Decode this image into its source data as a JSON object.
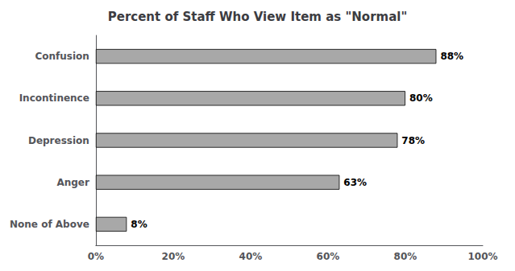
{
  "chart_data": {
    "type": "bar",
    "orientation": "horizontal",
    "title": "Percent of Staff Who View Item as \"Normal\"",
    "categories": [
      "None of Above",
      "Anger",
      "Depression",
      "Incontinence",
      "Confusion"
    ],
    "values": [
      8,
      63,
      78,
      80,
      88
    ],
    "value_labels": [
      "8%",
      "63%",
      "78%",
      "80%",
      "88%"
    ],
    "data_labels": true,
    "color": "#a8a8a8",
    "xlim": [
      0,
      100
    ],
    "xticks": [
      {
        "value": 0,
        "label": "0%"
      },
      {
        "value": 20,
        "label": "20%"
      },
      {
        "value": 40,
        "label": "40%"
      },
      {
        "value": 60,
        "label": "60%"
      },
      {
        "value": 80,
        "label": "80%"
      },
      {
        "value": 100,
        "label": "100%"
      }
    ],
    "grid": false
  }
}
